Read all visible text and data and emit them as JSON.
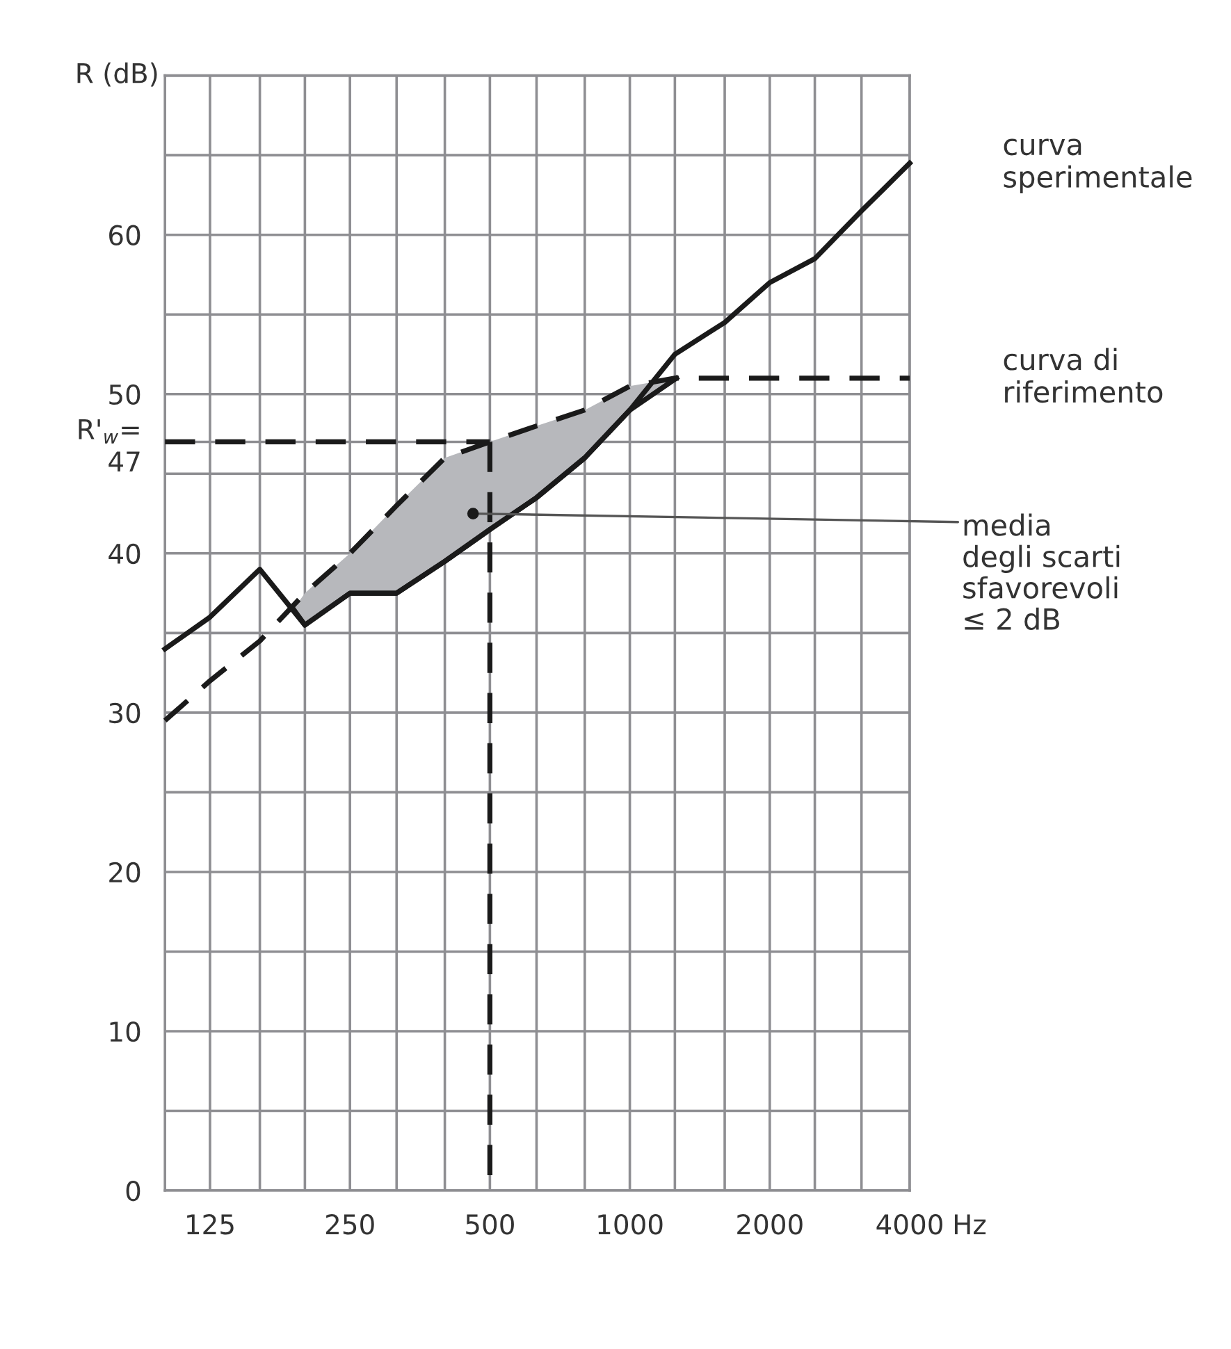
{
  "chart_data": {
    "type": "line",
    "xlabel": "Hz",
    "ylabel": "R (dB)",
    "x": [
      100,
      125,
      160,
      200,
      250,
      315,
      400,
      500,
      630,
      800,
      1000,
      1250,
      1600,
      2000,
      2500,
      3150,
      4000
    ],
    "log": "x",
    "xlim": [
      100,
      4000
    ],
    "xticks": [
      {
        "value": 100,
        "label": null
      },
      125,
      {
        "value": 160,
        "label": null
      },
      {
        "value": 200,
        "label": null
      },
      250,
      {
        "value": 315,
        "label": null
      },
      {
        "value": 400,
        "label": null
      },
      500,
      {
        "value": 630,
        "label": null
      },
      {
        "value": 800,
        "label": null
      },
      1000,
      {
        "value": 1250,
        "label": null
      },
      {
        "value": 1600,
        "label": null
      },
      2000,
      {
        "value": 2500,
        "label": null
      },
      {
        "value": 3150,
        "label": null
      },
      4000
    ],
    "ylim": [
      0,
      70
    ],
    "yticks": [
      0,
      {
        "value": 5,
        "label": null
      },
      10,
      {
        "value": 15,
        "label": null
      },
      20,
      {
        "value": 25,
        "label": null
      },
      30,
      {
        "value": 35,
        "label": null
      },
      40,
      {
        "value": 45,
        "label": null
      },
      {
        "value": 47,
        "label": "R'$_{w}$=\n47"
      },
      50,
      {
        "value": 55,
        "label": null
      },
      60,
      {
        "value": 65,
        "label": null
      },
      {
        "value": 70,
        "label": null
      }
    ],
    "grid": true,
    "series": [
      {
        "name": "curva\nsperimentale",
        "color": "#1a1a1a",
        "line_style": "solid",
        "values": [
          34,
          36,
          39,
          35.5,
          37.5,
          37.5,
          39.5,
          41.5,
          43.5,
          46,
          49,
          52.5,
          54.5,
          57,
          58.5,
          61.5,
          64.5
        ]
      },
      {
        "name": "curva di\nriferimento",
        "color": "#1a1a1a",
        "line_style": "dashed",
        "values": [
          29.5,
          32,
          34.5,
          37.5,
          40,
          43,
          46,
          47,
          48,
          49,
          50.5,
          51,
          51,
          51,
          51,
          51,
          51
        ]
      },
      {
        "color": "#1a1a1a",
        "line_style": "solid",
        "x": [
          189,
          200,
          250,
          315,
          400,
          500,
          630,
          800,
          1000,
          1260
        ],
        "values": [
          36.5,
          35.5,
          37.5,
          37.5,
          39.5,
          41.5,
          43.5,
          46,
          49,
          51
        ],
        "lower": [
          36.5,
          35.5,
          37.5,
          37.5,
          39.5,
          41.5,
          43.5,
          46,
          49,
          51
        ],
        "upper": [
          36.5,
          37.5,
          40,
          43,
          46,
          47,
          48,
          49,
          50.5,
          51
        ]
      },
      {
        "color": "#1a1a1a",
        "line_style": "dashed",
        "x": [
          100,
          500
        ],
        "values": [
          47,
          47
        ]
      },
      {
        "color": "#1a1a1a",
        "line_style": "dashed",
        "x": [
          500,
          500
        ],
        "values": [
          47,
          0
        ]
      }
    ],
    "annotations": [
      {
        "text": "media\ndegli scarti\nsfavorevoli\n≤ 2 dB",
        "x": 460,
        "y": 42.5
      }
    ]
  }
}
